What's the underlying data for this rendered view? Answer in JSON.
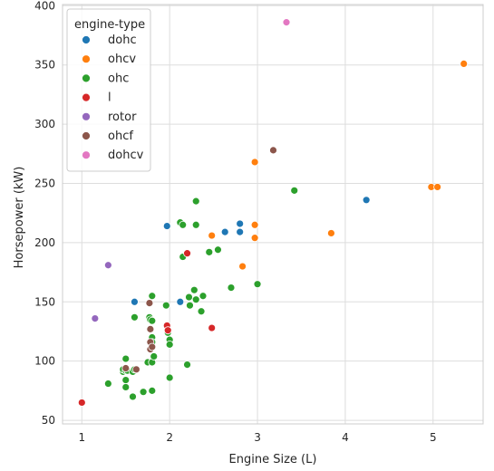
{
  "chart_data": {
    "type": "scatter",
    "xlabel": "Engine Size (L)",
    "ylabel": "Horsepower (kW)",
    "xlim": [
      0.78,
      5.57
    ],
    "ylim": [
      47,
      401
    ],
    "xticks": [
      1,
      2,
      3,
      4,
      5
    ],
    "yticks": [
      50,
      100,
      150,
      200,
      250,
      300,
      350,
      400
    ],
    "grid": true,
    "legend_position": "top-left",
    "legend_title": "engine-type",
    "series": [
      {
        "name": "dohc",
        "color": "#1f77b4",
        "points": [
          [
            1.6,
            150
          ],
          [
            1.97,
            214
          ],
          [
            2.12,
            150
          ],
          [
            2.63,
            209
          ],
          [
            2.8,
            209
          ],
          [
            2.8,
            216
          ],
          [
            4.24,
            236
          ]
        ]
      },
      {
        "name": "ohcv",
        "color": "#ff7f0e",
        "points": [
          [
            2.48,
            206
          ],
          [
            2.83,
            180
          ],
          [
            2.97,
            268
          ],
          [
            2.97,
            215
          ],
          [
            2.97,
            204
          ],
          [
            3.84,
            208
          ],
          [
            4.98,
            247
          ],
          [
            5.05,
            247
          ],
          [
            5.35,
            351
          ]
        ]
      },
      {
        "name": "ohc",
        "color": "#2ca02c",
        "points": [
          [
            1.3,
            81
          ],
          [
            1.47,
            91
          ],
          [
            1.47,
            93
          ],
          [
            1.5,
            92
          ],
          [
            1.5,
            102
          ],
          [
            1.5,
            84
          ],
          [
            1.5,
            78
          ],
          [
            1.52,
            92
          ],
          [
            1.58,
            70
          ],
          [
            1.58,
            91
          ],
          [
            1.6,
            93
          ],
          [
            1.6,
            137
          ],
          [
            1.7,
            74
          ],
          [
            1.75,
            99
          ],
          [
            1.77,
            137
          ],
          [
            1.78,
            135
          ],
          [
            1.8,
            155
          ],
          [
            1.8,
            134
          ],
          [
            1.8,
            120
          ],
          [
            1.8,
            116
          ],
          [
            1.8,
            99
          ],
          [
            1.8,
            75
          ],
          [
            1.82,
            104
          ],
          [
            1.96,
            147
          ],
          [
            1.98,
            124
          ],
          [
            2.0,
            118
          ],
          [
            2.0,
            114
          ],
          [
            2.0,
            86
          ],
          [
            2.12,
            217
          ],
          [
            2.15,
            215
          ],
          [
            2.15,
            188
          ],
          [
            2.2,
            97
          ],
          [
            2.22,
            154
          ],
          [
            2.23,
            147
          ],
          [
            2.28,
            160
          ],
          [
            2.3,
            235
          ],
          [
            2.3,
            215
          ],
          [
            2.3,
            152
          ],
          [
            2.36,
            142
          ],
          [
            2.38,
            155
          ],
          [
            2.45,
            192
          ],
          [
            2.55,
            194
          ],
          [
            2.7,
            162
          ],
          [
            3.0,
            165
          ],
          [
            3.42,
            244
          ]
        ]
      },
      {
        "name": "l",
        "color": "#d62728",
        "points": [
          [
            1.0,
            65
          ],
          [
            1.97,
            130
          ],
          [
            1.98,
            126
          ],
          [
            2.2,
            191
          ],
          [
            2.48,
            128
          ]
        ]
      },
      {
        "name": "rotor",
        "color": "#9467bd",
        "points": [
          [
            1.15,
            136
          ],
          [
            1.3,
            181
          ]
        ]
      },
      {
        "name": "ohcf",
        "color": "#8c564b",
        "points": [
          [
            1.5,
            94
          ],
          [
            1.62,
            93
          ],
          [
            1.77,
            149
          ],
          [
            1.78,
            127
          ],
          [
            1.78,
            116
          ],
          [
            1.78,
            110
          ],
          [
            1.8,
            112
          ],
          [
            3.18,
            278
          ]
        ]
      },
      {
        "name": "dohcv",
        "color": "#e377c2",
        "points": [
          [
            3.33,
            386
          ]
        ]
      }
    ]
  },
  "legend": {
    "title": "engine-type",
    "items": [
      "dohc",
      "ohcv",
      "ohc",
      "l",
      "rotor",
      "ohcf",
      "dohcv"
    ]
  }
}
